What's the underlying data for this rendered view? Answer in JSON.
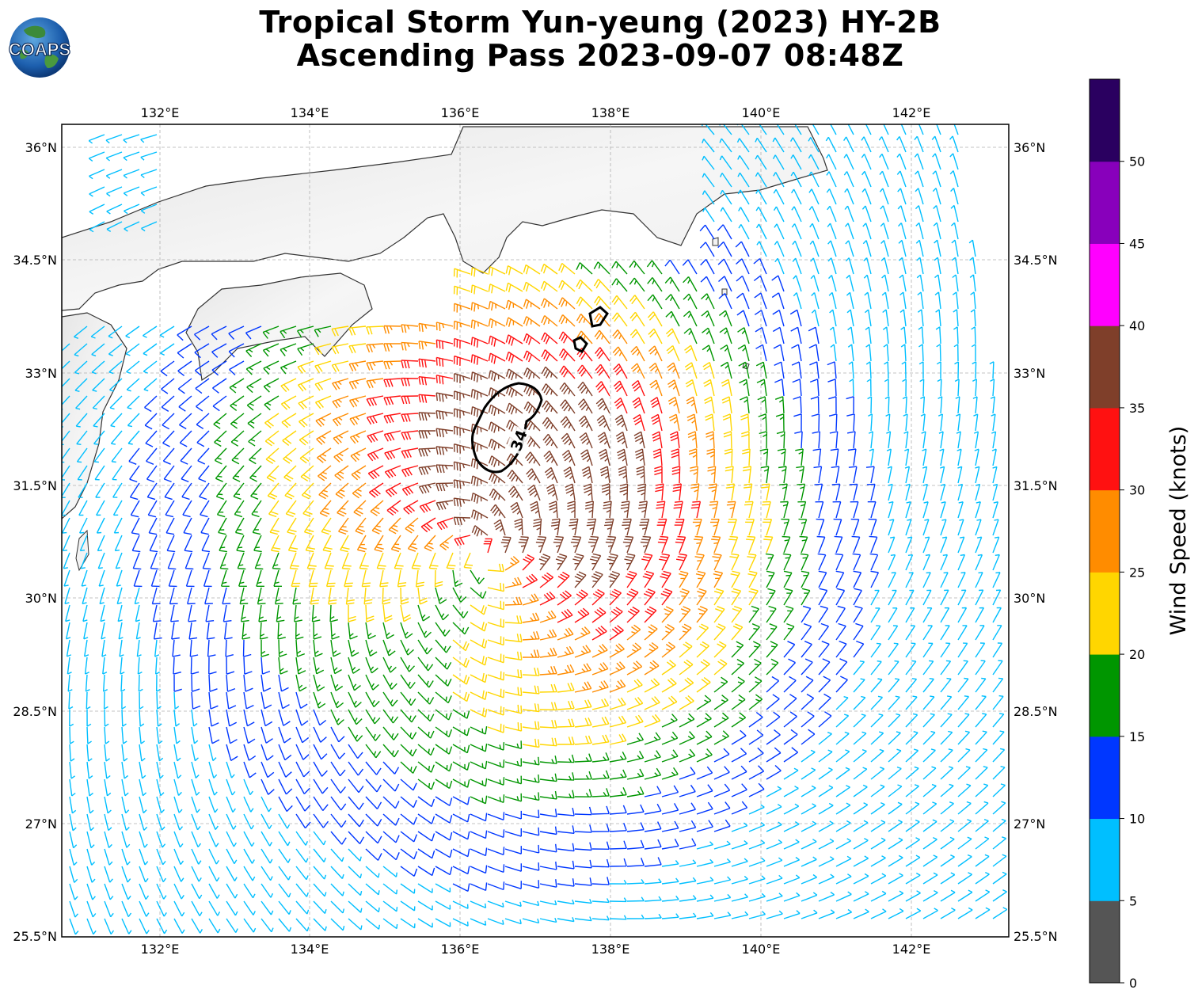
{
  "title_line1": "Tropical Storm Yun-yeung (2023) HY-2B",
  "title_line2": "Ascending Pass 2023-09-07 08:48Z",
  "logo_text": "COAPS",
  "lon_ticks": [
    "132°E",
    "134°E",
    "136°E",
    "138°E",
    "140°E",
    "142°E"
  ],
  "lat_ticks": [
    "36°N",
    "34.5°N",
    "33°N",
    "31.5°N",
    "30°N",
    "28.5°N",
    "27°N",
    "25.5°N"
  ],
  "contour_label": "34",
  "colorbar": {
    "label": "Wind Speed (knots)",
    "ticks": [
      "0",
      "5",
      "10",
      "15",
      "20",
      "25",
      "30",
      "35",
      "40",
      "45",
      "50"
    ],
    "colors": [
      "#555555",
      "#00bfff",
      "#0037ff",
      "#009600",
      "#ffd600",
      "#ff8c00",
      "#ff1111",
      "#7f3f2a",
      "#ff00ff",
      "#8800bb",
      "#2a0060"
    ]
  },
  "storm_center": {
    "lon": 136.3,
    "lat": 30.6
  },
  "chart_data": {
    "type": "wind barbs",
    "units": "knots",
    "lon_range": [
      130.7,
      143.3
    ],
    "lat_range": [
      25.5,
      36.3
    ]
  }
}
